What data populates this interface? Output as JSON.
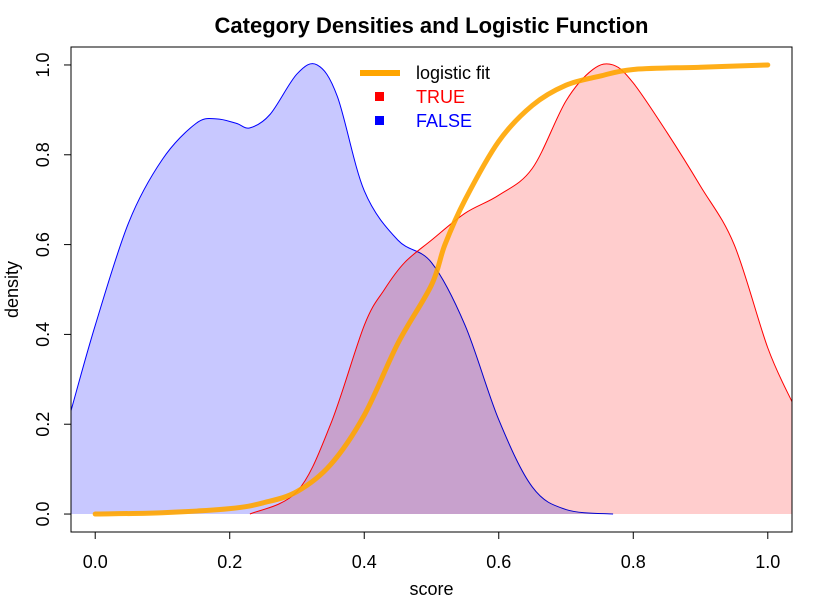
{
  "chart_data": {
    "type": "area",
    "title": "Category Densities and Logistic Function",
    "xlabel": "score",
    "ylabel": "density",
    "xlim": [
      -0.036,
      1.036
    ],
    "ylim": [
      -0.04,
      1.04
    ],
    "x_ticks": [
      "0.0",
      "0.2",
      "0.4",
      "0.6",
      "0.8",
      "1.0"
    ],
    "y_ticks": [
      "0.0",
      "0.2",
      "0.4",
      "0.6",
      "0.8",
      "1.0"
    ],
    "grid": false,
    "legend_position": "top-center",
    "legend": [
      {
        "label": "logistic fit",
        "color": "#FFA500",
        "symbol": "line"
      },
      {
        "label": "TRUE",
        "color": "#FF0000",
        "symbol": "square"
      },
      {
        "label": "FALSE",
        "color": "#0000FF",
        "symbol": "square"
      }
    ],
    "series": [
      {
        "name": "FALSE",
        "kind": "density",
        "fill": "#C8C8FF",
        "stroke": "#0000FF",
        "x": [
          -0.036,
          0.0,
          0.05,
          0.1,
          0.15,
          0.18,
          0.21,
          0.23,
          0.26,
          0.3,
          0.33,
          0.36,
          0.4,
          0.45,
          0.5,
          0.55,
          0.6,
          0.65,
          0.7,
          0.77
        ],
        "y": [
          0.23,
          0.42,
          0.65,
          0.79,
          0.87,
          0.88,
          0.87,
          0.86,
          0.89,
          0.98,
          1.0,
          0.93,
          0.72,
          0.61,
          0.56,
          0.42,
          0.21,
          0.06,
          0.01,
          0.0
        ]
      },
      {
        "name": "TRUE",
        "kind": "density",
        "fill": "#FFC8C8",
        "stroke": "#FF0000",
        "x": [
          0.23,
          0.3,
          0.35,
          0.4,
          0.43,
          0.46,
          0.5,
          0.55,
          0.6,
          0.65,
          0.7,
          0.74,
          0.77,
          0.8,
          0.85,
          0.9,
          0.95,
          1.0,
          1.036
        ],
        "y": [
          0.0,
          0.05,
          0.2,
          0.42,
          0.5,
          0.56,
          0.61,
          0.67,
          0.71,
          0.77,
          0.92,
          0.99,
          1.0,
          0.96,
          0.85,
          0.73,
          0.6,
          0.37,
          0.25
        ]
      },
      {
        "name": "logistic fit",
        "kind": "line",
        "stroke": "#FFA500",
        "x": [
          0.0,
          0.1,
          0.2,
          0.25,
          0.3,
          0.35,
          0.4,
          0.45,
          0.5,
          0.52,
          0.55,
          0.6,
          0.65,
          0.7,
          0.75,
          0.8,
          0.9,
          1.0
        ],
        "y": [
          0.0,
          0.003,
          0.012,
          0.025,
          0.05,
          0.11,
          0.22,
          0.38,
          0.51,
          0.6,
          0.7,
          0.83,
          0.91,
          0.955,
          0.975,
          0.99,
          0.995,
          1.0
        ]
      }
    ]
  }
}
